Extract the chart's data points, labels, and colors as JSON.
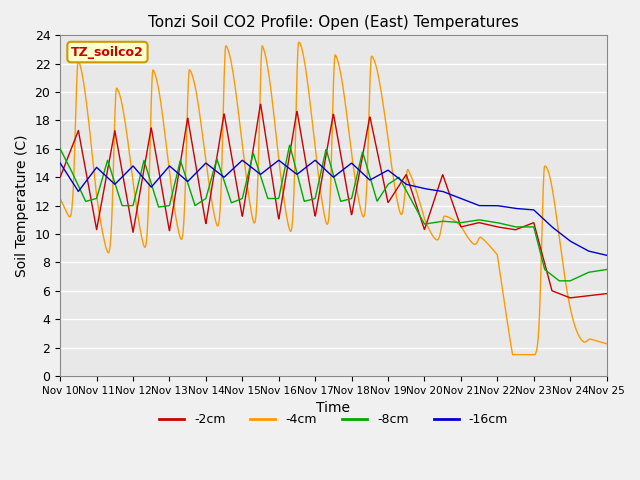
{
  "title": "Tonzi Soil CO2 Profile: Open (East) Temperatures",
  "xlabel": "Time",
  "ylabel": "Soil Temperature (C)",
  "ylim": [
    0,
    24
  ],
  "xlim": [
    0,
    15
  ],
  "fig_bg": "#f0f0f0",
  "plot_bg": "#e8e8e8",
  "grid_color": "white",
  "colors": {
    "-2cm": "#cc0000",
    "-4cm": "#ff9900",
    "-8cm": "#00aa00",
    "-16cm": "#0000cc"
  },
  "xtick_labels": [
    "Nov 10",
    "Nov 11",
    "Nov 12",
    "Nov 13",
    "Nov 14",
    "Nov 15",
    "Nov 16",
    "Nov 17",
    "Nov 18",
    "Nov 19",
    "Nov 20",
    "Nov 21",
    "Nov 22",
    "Nov 23",
    "Nov 24",
    "Nov 25"
  ],
  "legend_text": "TZ_soilco2",
  "legend_bg": "#ffffcc",
  "legend_border": "#cc9900"
}
